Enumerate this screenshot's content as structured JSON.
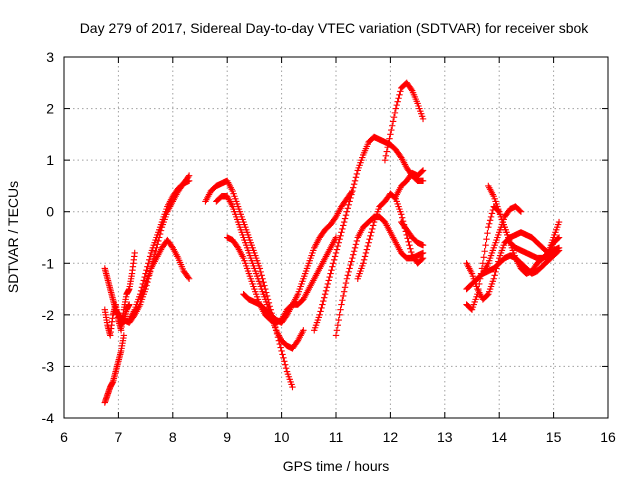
{
  "chart_data": {
    "type": "scatter",
    "title": "Day 279 of 2017, Sidereal Day-to-day VTEC variation (SDTVAR) for receiver sbok",
    "xlabel": "GPS time / hours",
    "ylabel": "SDTVAR / TECUs",
    "xlim": [
      6,
      16
    ],
    "ylim": [
      -4,
      3
    ],
    "xticks": [
      "6",
      "7",
      "8",
      "9",
      "10",
      "11",
      "12",
      "13",
      "14",
      "15",
      "16"
    ],
    "yticks": [
      "-4",
      "-3",
      "-2",
      "-1",
      "0",
      "1",
      "2",
      "3"
    ],
    "grid": true,
    "marker": "plus",
    "color": "#ff0000",
    "series": [
      {
        "x": [
          6.75,
          6.8,
          6.85,
          6.9,
          6.95,
          7.0,
          7.05,
          7.1,
          7.15,
          7.2,
          7.25,
          7.3
        ],
        "y": [
          -1.9,
          -2.2,
          -2.4,
          -2.0,
          -1.8,
          -2.1,
          -2.3,
          -1.9,
          -1.6,
          -1.5,
          -1.2,
          -0.8
        ]
      },
      {
        "x": [
          6.75,
          6.8,
          6.85,
          6.9,
          6.95,
          7.0,
          7.05,
          7.1,
          7.15,
          7.2
        ],
        "y": [
          -1.1,
          -1.3,
          -1.5,
          -1.7,
          -1.9,
          -2.0,
          -2.2,
          -2.1,
          -1.9,
          -1.8
        ]
      },
      {
        "x": [
          6.75,
          6.8,
          6.85,
          6.9,
          6.95,
          7.0,
          7.05,
          7.1
        ],
        "y": [
          -3.7,
          -3.55,
          -3.4,
          -3.3,
          -3.1,
          -2.9,
          -2.7,
          -2.4
        ]
      },
      {
        "x": [
          7.0,
          7.1,
          7.2,
          7.3,
          7.4,
          7.5,
          7.6,
          7.7,
          7.8,
          7.9,
          8.0,
          8.1,
          8.2,
          8.3
        ],
        "y": [
          -2.0,
          -2.1,
          -2.15,
          -2.0,
          -1.8,
          -1.5,
          -1.1,
          -0.7,
          -0.3,
          0.0,
          0.2,
          0.4,
          0.55,
          0.7
        ]
      },
      {
        "x": [
          7.2,
          7.3,
          7.4,
          7.5,
          7.6,
          7.7,
          7.8,
          7.9,
          8.0,
          8.1,
          8.2,
          8.3
        ],
        "y": [
          -2.1,
          -1.9,
          -1.6,
          -1.2,
          -0.8,
          -0.5,
          -0.2,
          0.1,
          0.3,
          0.45,
          0.55,
          0.6
        ]
      },
      {
        "x": [
          7.4,
          7.5,
          7.6,
          7.7,
          7.8,
          7.9,
          8.0,
          8.1,
          8.2,
          8.3
        ],
        "y": [
          -1.7,
          -1.4,
          -1.1,
          -0.9,
          -0.7,
          -0.55,
          -0.7,
          -0.9,
          -1.15,
          -1.3
        ]
      },
      {
        "x": [
          8.6,
          8.7,
          8.8,
          8.9,
          9.0,
          9.1,
          9.2,
          9.3,
          9.4,
          9.5,
          9.6,
          9.7,
          9.8,
          9.9,
          10.0,
          10.1,
          10.2
        ],
        "y": [
          0.2,
          0.4,
          0.5,
          0.55,
          0.6,
          0.4,
          0.1,
          -0.2,
          -0.5,
          -0.8,
          -1.1,
          -1.5,
          -1.9,
          -2.3,
          -2.7,
          -3.1,
          -3.4
        ]
      },
      {
        "x": [
          8.8,
          8.9,
          9.0,
          9.1,
          9.2,
          9.3,
          9.4,
          9.5,
          9.6,
          9.7,
          9.8,
          9.9,
          10.0,
          10.1,
          10.2,
          10.3,
          10.4
        ],
        "y": [
          0.2,
          0.3,
          0.3,
          0.1,
          -0.2,
          -0.5,
          -0.8,
          -1.1,
          -1.4,
          -1.7,
          -2.0,
          -2.3,
          -2.5,
          -2.6,
          -2.65,
          -2.5,
          -2.3
        ]
      },
      {
        "x": [
          9.0,
          9.1,
          9.2,
          9.3,
          9.4,
          9.5,
          9.6,
          9.7,
          9.8,
          9.9,
          10.0,
          10.1,
          10.2,
          10.3,
          10.4,
          10.5,
          10.6,
          10.7,
          10.8,
          10.9,
          11.0
        ],
        "y": [
          -0.5,
          -0.55,
          -0.7,
          -0.9,
          -1.2,
          -1.5,
          -1.8,
          -2.0,
          -2.1,
          -2.15,
          -2.1,
          -1.9,
          -1.8,
          -1.8,
          -1.7,
          -1.5,
          -1.3,
          -1.1,
          -0.9,
          -0.7,
          -0.5
        ]
      },
      {
        "x": [
          9.3,
          9.4,
          9.5,
          9.6,
          9.7,
          9.8,
          9.9,
          10.0,
          10.1,
          10.2,
          10.3,
          10.4,
          10.5,
          10.6,
          10.7,
          10.8,
          10.9,
          11.0,
          11.1,
          11.2,
          11.3
        ],
        "y": [
          -1.6,
          -1.7,
          -1.75,
          -1.8,
          -1.9,
          -2.0,
          -2.1,
          -2.15,
          -2.0,
          -1.8,
          -1.6,
          -1.3,
          -1.0,
          -0.7,
          -0.5,
          -0.35,
          -0.25,
          -0.1,
          0.1,
          0.25,
          0.4
        ]
      },
      {
        "x": [
          10.6,
          10.7,
          10.8,
          10.9,
          11.0,
          11.1,
          11.2,
          11.3,
          11.4,
          11.5,
          11.6,
          11.7,
          11.8,
          11.9,
          12.0,
          12.1,
          12.2,
          12.3,
          12.4,
          12.5,
          12.6
        ],
        "y": [
          -2.3,
          -2.0,
          -1.6,
          -1.2,
          -0.8,
          -0.4,
          0.0,
          0.4,
          0.8,
          1.1,
          1.35,
          1.45,
          1.4,
          1.35,
          1.3,
          1.2,
          1.05,
          0.85,
          0.7,
          0.6,
          0.6
        ]
      },
      {
        "x": [
          11.0,
          11.1,
          11.2,
          11.3,
          11.4,
          11.5,
          11.6,
          11.7,
          11.8,
          11.9,
          12.0,
          12.1,
          12.2,
          12.3,
          12.4,
          12.5,
          12.6
        ],
        "y": [
          -2.4,
          -1.8,
          -1.3,
          -0.9,
          -0.5,
          -0.3,
          -0.2,
          -0.1,
          -0.1,
          -0.2,
          -0.4,
          -0.6,
          -0.8,
          -0.9,
          -0.9,
          -0.85,
          -0.8
        ]
      },
      {
        "x": [
          11.4,
          11.5,
          11.6,
          11.7,
          11.8,
          11.9,
          12.0,
          12.1,
          12.2,
          12.3,
          12.4,
          12.5,
          12.6
        ],
        "y": [
          -1.3,
          -1.0,
          -0.6,
          -0.2,
          0.1,
          0.2,
          0.35,
          0.25,
          -0.05,
          -0.45,
          -0.85,
          -1.0,
          -0.9
        ]
      },
      {
        "x": [
          11.9,
          12.0,
          12.1,
          12.2,
          12.3,
          12.4,
          12.5,
          12.6
        ],
        "y": [
          1.0,
          1.5,
          2.0,
          2.4,
          2.5,
          2.35,
          2.1,
          1.8
        ]
      },
      {
        "x": [
          12.1,
          12.2,
          12.3,
          12.4,
          12.5,
          12.6
        ],
        "y": [
          0.3,
          0.5,
          0.6,
          0.75,
          0.7,
          0.8
        ]
      },
      {
        "x": [
          12.2,
          12.3,
          12.4,
          12.5,
          12.6
        ],
        "y": [
          -0.2,
          -0.35,
          -0.5,
          -0.6,
          -0.65
        ]
      },
      {
        "x": [
          13.4,
          13.5,
          13.6,
          13.7,
          13.8,
          13.9,
          14.0,
          14.1,
          14.2,
          14.3,
          14.4,
          14.5,
          14.6,
          14.7,
          14.8,
          14.9,
          15.0,
          15.1
        ],
        "y": [
          -1.8,
          -1.9,
          -1.6,
          -1.0,
          -0.3,
          0.1,
          0.0,
          -0.3,
          -0.6,
          -0.7,
          -0.75,
          -0.8,
          -0.85,
          -0.9,
          -0.9,
          -0.85,
          -0.75,
          -0.7
        ]
      },
      {
        "x": [
          13.4,
          13.5,
          13.6,
          13.7,
          13.8,
          13.9,
          14.0,
          14.1,
          14.2,
          14.3,
          14.4,
          14.5,
          14.6,
          14.7,
          14.8,
          14.9,
          15.0,
          15.1
        ],
        "y": [
          -1.0,
          -1.2,
          -1.5,
          -1.7,
          -1.6,
          -1.3,
          -0.9,
          -0.6,
          -0.5,
          -0.45,
          -0.4,
          -0.45,
          -0.5,
          -0.6,
          -0.7,
          -0.8,
          -0.6,
          -0.5
        ]
      },
      {
        "x": [
          13.4,
          13.5,
          13.6,
          13.7,
          13.8,
          13.9,
          14.0,
          14.1,
          14.2,
          14.3,
          14.4
        ],
        "y": [
          -1.5,
          -1.4,
          -1.3,
          -1.2,
          -1.0,
          -0.7,
          -0.4,
          -0.1,
          0.05,
          0.1,
          0.0
        ]
      },
      {
        "x": [
          13.8,
          13.9,
          14.0,
          14.1,
          14.2,
          14.3,
          14.4,
          14.5,
          14.6,
          14.7,
          14.8,
          14.9,
          15.0,
          15.1
        ],
        "y": [
          0.5,
          0.3,
          0.0,
          -0.3,
          -0.6,
          -0.9,
          -1.1,
          -1.2,
          -1.15,
          -1.0,
          -0.9,
          -0.8,
          -0.5,
          -0.2
        ]
      },
      {
        "x": [
          13.7,
          13.8,
          13.9,
          14.0,
          14.1,
          14.2,
          14.3,
          14.4,
          14.5,
          14.6,
          14.7,
          14.8,
          14.9,
          15.0,
          15.1
        ],
        "y": [
          -1.2,
          -1.15,
          -1.1,
          -1.0,
          -0.9,
          -0.85,
          -0.9,
          -1.0,
          -1.1,
          -1.2,
          -1.15,
          -1.05,
          -0.95,
          -0.85,
          -0.75
        ]
      }
    ]
  }
}
